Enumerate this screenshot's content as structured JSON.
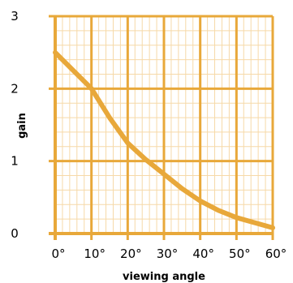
{
  "chart_data": {
    "type": "line",
    "title": "",
    "xlabel": "viewing angle",
    "ylabel": "gain",
    "xlim": [
      0,
      60
    ],
    "ylim": [
      0,
      3
    ],
    "x_ticks": [
      {
        "value": 0,
        "label": "0°"
      },
      {
        "value": 10,
        "label": "10°"
      },
      {
        "value": 20,
        "label": "20°"
      },
      {
        "value": 30,
        "label": "30°"
      },
      {
        "value": 40,
        "label": "40°"
      },
      {
        "value": 50,
        "label": "50°"
      },
      {
        "value": 60,
        "label": "60°"
      }
    ],
    "y_ticks": [
      {
        "value": 0,
        "label": "0"
      },
      {
        "value": 1,
        "label": "1"
      },
      {
        "value": 2,
        "label": "2"
      },
      {
        "value": 3,
        "label": "3"
      }
    ],
    "grid": true,
    "minor_grid": true,
    "series": [
      {
        "x": [
          0,
          5,
          10,
          15,
          20,
          25,
          30,
          35,
          40,
          45,
          50,
          55,
          60
        ],
        "y": [
          2.5,
          2.25,
          2.0,
          1.6,
          1.25,
          1.02,
          0.82,
          0.62,
          0.45,
          0.32,
          0.22,
          0.15,
          0.08
        ]
      }
    ],
    "colors": {
      "grid_major": "#e8a83a",
      "grid_minor": "#f6d9a8",
      "line": "#e8a83a",
      "background": "#ffffff"
    }
  }
}
